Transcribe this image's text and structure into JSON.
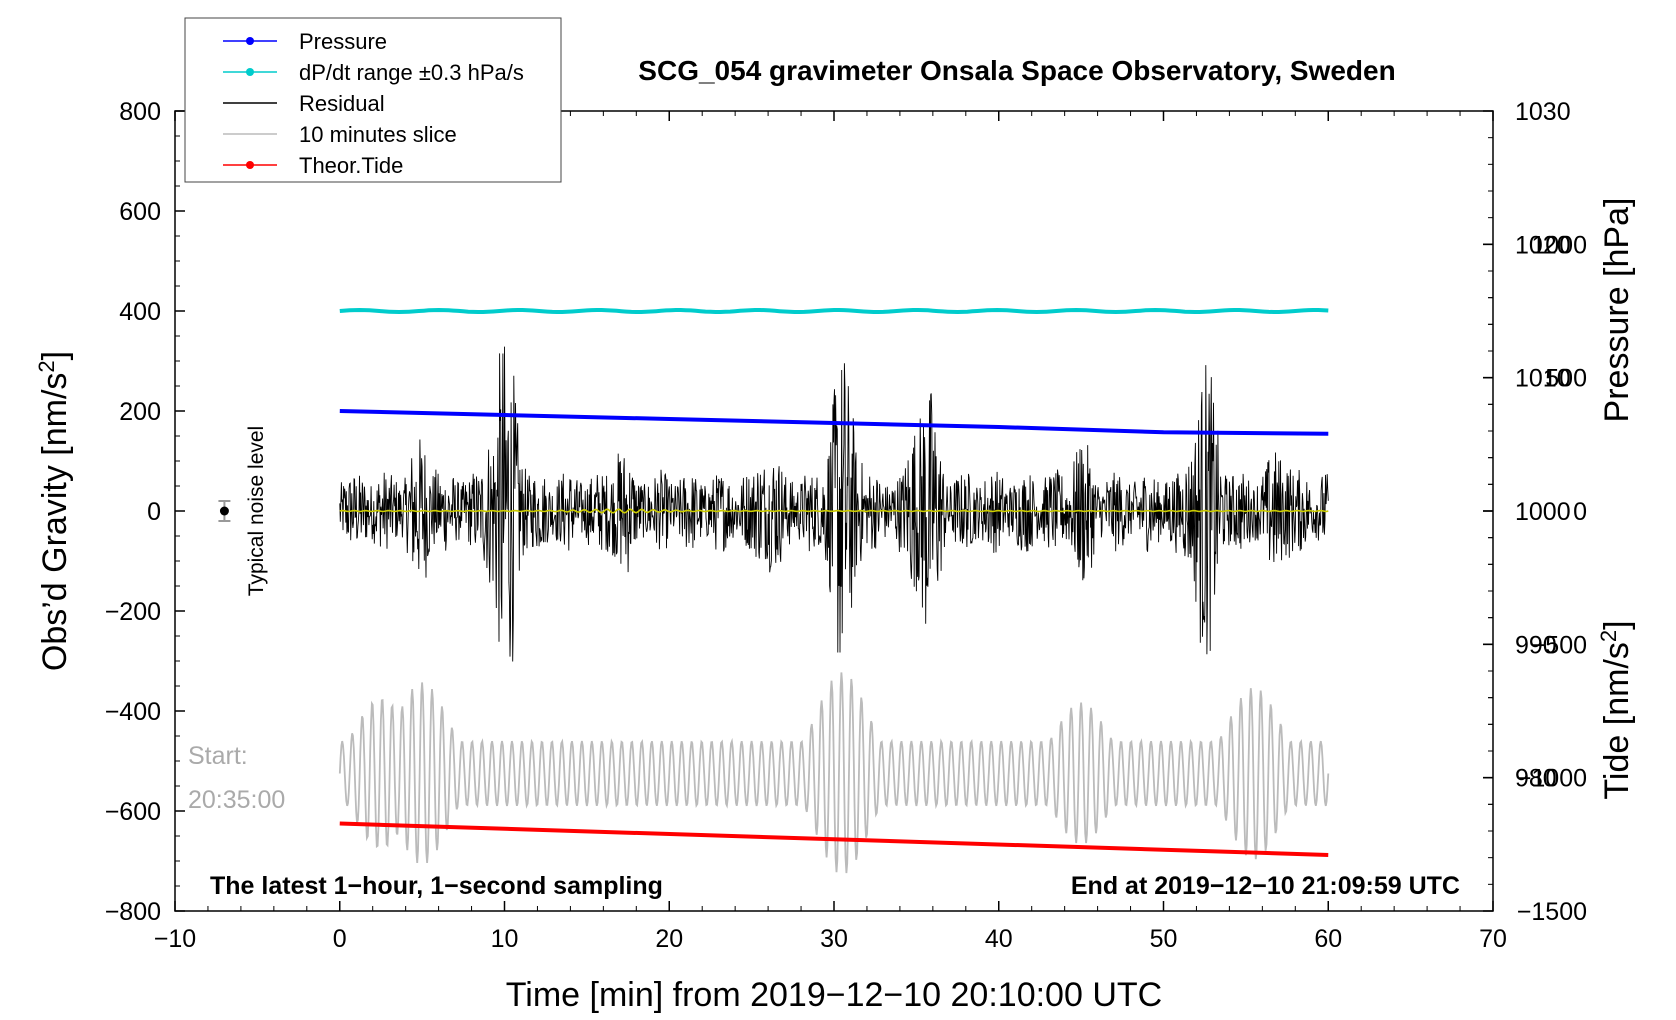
{
  "chart_data": {
    "type": "line",
    "title": "SCG_054 gravimeter Onsala Space Observatory, Sweden",
    "xlabel": "Time [min] from 2019−12−10 20:10:00 UTC",
    "ylabel_left": "Obs’d Gravity [nm/s²]",
    "ylabel_left_parts": {
      "pre": "Obs’d Gravity [nm/s",
      "sup": "2",
      "post": "]"
    },
    "ylabel_right_top": "Pressure [hPa]",
    "ylabel_right_bottom": "Tide [nm/s²]",
    "ylabel_right_bottom_parts": {
      "pre": "Tide [nm/s",
      "sup": "2",
      "post": "]"
    },
    "xlim": [
      -10,
      70
    ],
    "ylim_left": [
      -800,
      800
    ],
    "ylim_pressure": [
      970,
      1030
    ],
    "ylim_tide": [
      -1500,
      1500
    ],
    "x_ticks": [
      "−10",
      "0",
      "10",
      "20",
      "30",
      "40",
      "50",
      "60",
      "70"
    ],
    "x_tick_values": [
      -10,
      0,
      10,
      20,
      30,
      40,
      50,
      60,
      70
    ],
    "y_left_ticks": [
      "800",
      "600",
      "400",
      "200",
      "0",
      "−200",
      "−400",
      "−600",
      "−800"
    ],
    "y_left_tick_values": [
      800,
      600,
      400,
      200,
      0,
      -200,
      -400,
      -600,
      -800
    ],
    "y_pressure_ticks": [
      "1030",
      "1020",
      "1010",
      "1000",
      "990",
      "980"
    ],
    "y_pressure_tick_values": [
      1030,
      1020,
      1010,
      1000,
      990,
      980
    ],
    "y_tide_ticks": [
      "1000",
      "500",
      "0",
      "−500",
      "−1000",
      "−1500"
    ],
    "y_tide_tick_values": [
      1000,
      500,
      0,
      -500,
      -1000,
      -1500
    ],
    "legend": [
      {
        "label": "Pressure",
        "color": "#0000ff",
        "marker": true
      },
      {
        "label": "dP/dt range ±0.3 hPa/s",
        "color": "#00cccc",
        "marker": true
      },
      {
        "label": "Residual",
        "color": "#000000",
        "marker": false
      },
      {
        "label": "10 minutes slice",
        "color": "#bbbbbb",
        "marker": false
      },
      {
        "label": "Theor.Tide",
        "color": "#ff0000",
        "marker": true
      }
    ],
    "legend_position": "top-left",
    "annotations": {
      "bottom_left": "The latest 1−hour, 1−second sampling",
      "bottom_right": "End at 2019−12−10 21:09:59 UTC",
      "start_label_line1": "Start:",
      "start_label_line2": "20:35:00",
      "noise_label": "Typical noise level"
    },
    "noise_marker": {
      "x": -7,
      "y": 0,
      "err": 20
    },
    "series": [
      {
        "name": "Pressure",
        "color": "#0000ff",
        "axis": "pressure",
        "x": [
          0,
          10,
          20,
          30,
          40,
          50,
          60
        ],
        "y": [
          1007.5,
          1007.2,
          1006.9,
          1006.6,
          1006.3,
          1005.9,
          1005.8
        ]
      },
      {
        "name": "dP/dt range ±0.3 hPa/s",
        "color": "#00cccc",
        "axis": "left",
        "x": [
          0,
          60
        ],
        "y": [
          400,
          400
        ]
      },
      {
        "name": "Residual",
        "color": "#000000",
        "axis": "left",
        "x": [
          0,
          60
        ],
        "envelope_peak": 320,
        "envelope_trough": -295
      },
      {
        "name": "Smoothed residual",
        "color": "#cccc00",
        "axis": "left",
        "x": [
          0,
          60
        ],
        "y": [
          0,
          0
        ]
      },
      {
        "name": "10 minutes slice",
        "color": "#bbbbbb",
        "axis": "left",
        "x": [
          0,
          60
        ],
        "center": -525,
        "max": -360,
        "min": -765
      },
      {
        "name": "Theor.Tide",
        "color": "#ff0000",
        "axis": "left",
        "x": [
          0,
          60
        ],
        "y": [
          -625,
          -688
        ]
      }
    ]
  }
}
